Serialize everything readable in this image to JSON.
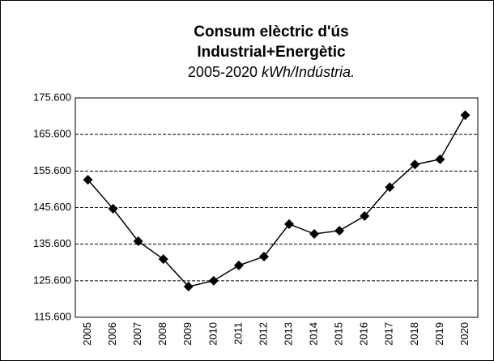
{
  "chart_data": {
    "type": "line",
    "title": [
      "Consum elèctric d'ús",
      "Industrial+Energètic"
    ],
    "subtitle": "2005-2020",
    "units": "kWh/Indústria.",
    "categories": [
      "2005",
      "2006",
      "2007",
      "2008",
      "2009",
      "2010",
      "2011",
      "2012",
      "2013",
      "2014",
      "2015",
      "2016",
      "2017",
      "2018",
      "2019",
      "2020"
    ],
    "series": [
      {
        "name": "Consum",
        "color": "#000000",
        "values": [
          153200,
          145300,
          136400,
          131500,
          124000,
          125600,
          129800,
          132200,
          141100,
          138400,
          139300,
          143300,
          151200,
          157400,
          158800,
          170900
        ]
      }
    ],
    "ylim": [
      115600,
      175600
    ],
    "yticks": [
      {
        "value": 115600,
        "label": "115.600"
      },
      {
        "value": 125600,
        "label": "125.600"
      },
      {
        "value": 135600,
        "label": "135.600"
      },
      {
        "value": 145600,
        "label": "145.600"
      },
      {
        "value": 155600,
        "label": "155.600"
      },
      {
        "value": 165600,
        "label": "165.600"
      },
      {
        "value": 175600,
        "label": "175.600"
      }
    ],
    "grid": true
  }
}
